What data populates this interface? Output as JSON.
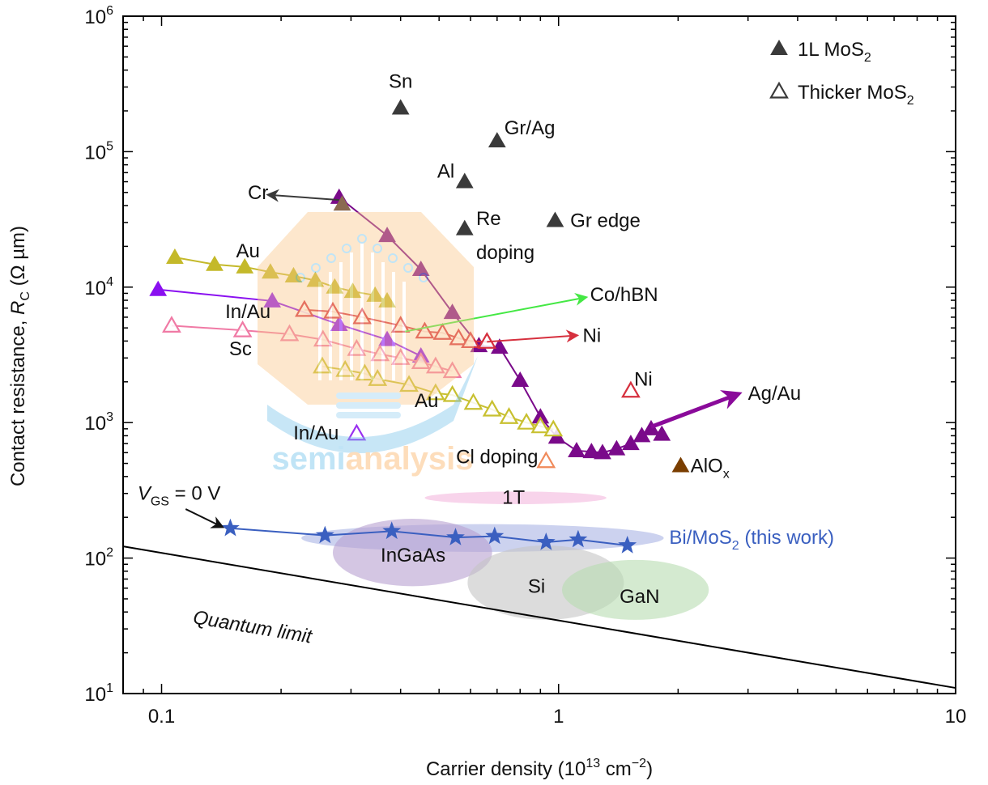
{
  "chart_data": {
    "type": "scatter",
    "xscale": "log",
    "yscale": "log",
    "xlim": [
      0.08,
      10
    ],
    "ylim": [
      10,
      1000000
    ],
    "xlabel": {
      "text": "Carrier density (10",
      "sup": "13",
      "text2": " cm",
      "sup2": "−2",
      "text3": ")"
    },
    "ylabel": {
      "text": "Contact resistance, ",
      "italic": "R",
      "sub": "C",
      "text2": " (Ω µm)"
    },
    "xticks": [
      {
        "value": 0.1,
        "label": "0.1"
      },
      {
        "value": 1,
        "label": "1"
      },
      {
        "value": 10,
        "label": "10"
      }
    ],
    "yticks": [
      {
        "value": 10,
        "base": "10",
        "exp": "1"
      },
      {
        "value": 100,
        "base": "10",
        "exp": "2"
      },
      {
        "value": 1000,
        "base": "10",
        "exp": "3"
      },
      {
        "value": 10000,
        "base": "10",
        "exp": "4"
      },
      {
        "value": 100000,
        "base": "10",
        "exp": "5"
      },
      {
        "value": 1000000,
        "base": "10",
        "exp": "6"
      }
    ],
    "legend": {
      "placement": "top-right",
      "entries": [
        {
          "marker": "filled-triangle",
          "text": "1L MoS",
          "sub": "2",
          "color": "#3a3a3a"
        },
        {
          "marker": "open-triangle",
          "text": "Thicker MoS",
          "sub": "2",
          "color": "#3a3a3a"
        }
      ]
    },
    "series": [
      {
        "name": "Ag/Au",
        "marker": "filled",
        "color": "#7a0a8a",
        "line": true,
        "x": [
          0.28,
          0.37,
          0.45,
          0.54,
          0.63,
          0.71,
          0.8,
          0.9,
          0.99,
          1.11,
          1.21,
          1.29,
          1.4,
          1.52,
          1.62,
          1.71,
          1.82
        ],
        "y": [
          46000,
          24000,
          13500,
          6500,
          3700,
          3600,
          2050,
          1100,
          780,
          620,
          610,
          600,
          640,
          700,
          800,
          900,
          820
        ]
      },
      {
        "name": "Au (1L)",
        "marker": "filled",
        "color": "#c4b92a",
        "line": true,
        "x": [
          0.108,
          0.136,
          0.162,
          0.188,
          0.215,
          0.244,
          0.273,
          0.303,
          0.345,
          0.37
        ],
        "y": [
          16600,
          14700,
          14100,
          12900,
          12100,
          11200,
          10000,
          9300,
          8700,
          7900
        ]
      },
      {
        "name": "In/Au (1L)",
        "marker": "filled",
        "color": "#8a10f0",
        "line": true,
        "x": [
          0.098,
          0.19,
          0.28,
          0.37,
          0.45
        ],
        "y": [
          9600,
          7900,
          5300,
          4100,
          3100
        ]
      },
      {
        "name": "Sc",
        "marker": "open",
        "color": "#f07aa5",
        "line": true,
        "x": [
          0.106,
          0.16,
          0.21,
          0.255,
          0.31,
          0.355,
          0.4,
          0.45,
          0.49,
          0.54
        ],
        "y": [
          5200,
          4800,
          4500,
          4100,
          3500,
          3200,
          3000,
          2800,
          2600,
          2400
        ]
      },
      {
        "name": "Ni (thicker)",
        "marker": "open",
        "color": "#d6303e",
        "line": true,
        "x": [
          0.229,
          0.27,
          0.32,
          0.4,
          0.46,
          0.51,
          0.56,
          0.6,
          0.66
        ],
        "y": [
          6800,
          6600,
          6000,
          5200,
          4700,
          4600,
          4200,
          4000,
          3950
        ]
      },
      {
        "name": "Au (thicker)",
        "marker": "open",
        "color": "#c8c030",
        "line": true,
        "x": [
          0.254,
          0.29,
          0.325,
          0.35,
          0.42,
          0.49,
          0.54,
          0.61,
          0.68,
          0.75,
          0.83,
          0.9,
          0.97
        ],
        "y": [
          2600,
          2450,
          2300,
          2100,
          1900,
          1650,
          1600,
          1400,
          1250,
          1100,
          1000,
          940,
          890
        ]
      },
      {
        "name": "Bi/MoS2",
        "marker": "star",
        "color": "#3a5fc0",
        "line": true,
        "x": [
          0.149,
          0.258,
          0.38,
          0.55,
          0.69,
          0.93,
          1.12,
          1.49
        ],
        "y": [
          166,
          147,
          158,
          142,
          145,
          131,
          137,
          124
        ]
      }
    ],
    "points": [
      {
        "name": "Sn",
        "marker": "filled",
        "color": "#3a3a3a",
        "x": 0.4,
        "y": 210000
      },
      {
        "name": "Gr/Ag",
        "marker": "filled",
        "color": "#3a3a3a",
        "x": 0.7,
        "y": 120000
      },
      {
        "name": "Al",
        "marker": "filled",
        "color": "#3a3a3a",
        "x": 0.58,
        "y": 60000
      },
      {
        "name": "Re doping",
        "marker": "filled",
        "color": "#3a3a3a",
        "x": 0.58,
        "y": 27000
      },
      {
        "name": "Gr edge",
        "marker": "filled",
        "color": "#3a3a3a",
        "x": 0.98,
        "y": 31000
      },
      {
        "name": "Cr",
        "marker": "filled",
        "color": "#8a6a50",
        "x": 0.285,
        "y": 41000
      },
      {
        "name": "AlOx",
        "marker": "filled",
        "color": "#7a3e00",
        "x": 2.03,
        "y": 480
      },
      {
        "name": "Ni",
        "marker": "open",
        "color": "#d6303e",
        "x": 1.52,
        "y": 1720
      },
      {
        "name": "Cl doping",
        "marker": "open",
        "color": "#f08a5a",
        "x": 0.93,
        "y": 520
      },
      {
        "name": "In/Au (thicker)",
        "marker": "open",
        "color": "#9a30f0",
        "x": 0.31,
        "y": 830
      }
    ],
    "arrows": [
      {
        "name": "Cr",
        "color": "#3a3a3a",
        "from": [
          0.28,
          44000
        ],
        "to": [
          0.186,
          48000
        ],
        "width": 2
      },
      {
        "name": "Co/hBN",
        "color": "#44e844",
        "from": [
          0.41,
          4700
        ],
        "to": [
          1.17,
          8400
        ],
        "width": 2
      },
      {
        "name": "Ni",
        "color": "#d6303e",
        "from": [
          0.66,
          3950
        ],
        "to": [
          1.11,
          4400
        ],
        "width": 2
      },
      {
        "name": "Ag/Au",
        "color": "#8a0a9a",
        "from": [
          1.71,
          930
        ],
        "to": [
          2.84,
          1630
        ],
        "width": 5
      },
      {
        "name": "VGS",
        "color": "#111111",
        "from": [
          0.115,
          230
        ],
        "to": [
          0.142,
          170
        ],
        "width": 2
      }
    ],
    "regions": [
      {
        "name": "1T",
        "color": "#f4b8de",
        "x": [
          0.46,
          1.32
        ],
        "y": [
          250,
          310
        ]
      },
      {
        "name": "Bi band",
        "color": "#aab4e4",
        "x": [
          0.225,
          1.84
        ],
        "y": [
          111,
          178
        ]
      },
      {
        "name": "InGaAs",
        "color": "#b8a0d0",
        "x": [
          0.27,
          0.68
        ],
        "y": [
          62,
          195
        ]
      },
      {
        "name": "Si",
        "color": "#c4c4c4",
        "x": [
          0.59,
          1.46
        ],
        "y": [
          35,
          124
        ]
      },
      {
        "name": "GaN",
        "color": "#b8dcb0",
        "x": [
          1.02,
          2.39
        ],
        "y": [
          35,
          97
        ]
      }
    ],
    "quantum_limit": {
      "label": "Quantum limit",
      "x": [
        0.08,
        10
      ],
      "y": [
        122,
        11
      ]
    },
    "annotations": [
      {
        "text": "Sn",
        "x": 0.4,
        "y": 330000,
        "anchor": "middle",
        "color": "#111"
      },
      {
        "text": "Gr/Ag",
        "x": 0.73,
        "y": 150000,
        "anchor": "start",
        "color": "#111"
      },
      {
        "text": "Al",
        "x": 0.52,
        "y": 72000,
        "anchor": "middle",
        "color": "#111"
      },
      {
        "text": "Re",
        "x": 0.62,
        "y": 32000,
        "anchor": "start",
        "color": "#111"
      },
      {
        "text": "doping",
        "x": 0.62,
        "y": 18000,
        "anchor": "start",
        "color": "#111"
      },
      {
        "text": "Gr edge",
        "x": 1.07,
        "y": 31000,
        "anchor": "start",
        "color": "#111"
      },
      {
        "text": "Cr",
        "x": 0.175,
        "y": 50000,
        "anchor": "middle",
        "color": "#111"
      },
      {
        "text": "Au",
        "x": 0.165,
        "y": 18500,
        "anchor": "middle",
        "color": "#111"
      },
      {
        "text": "In/Au",
        "x": 0.165,
        "y": 6600,
        "anchor": "middle",
        "color": "#111"
      },
      {
        "text": "Sc",
        "x": 0.158,
        "y": 3500,
        "anchor": "middle",
        "color": "#111"
      },
      {
        "text": "Co/hBN",
        "x": 1.2,
        "y": 8800,
        "anchor": "start",
        "color": "#111"
      },
      {
        "text": "Ni",
        "x": 1.15,
        "y": 4400,
        "anchor": "start",
        "color": "#111"
      },
      {
        "text": "Ni",
        "x": 1.55,
        "y": 2100,
        "anchor": "start",
        "color": "#111"
      },
      {
        "text": "Ag/Au",
        "x": 3.0,
        "y": 1650,
        "anchor": "start",
        "color": "#111"
      },
      {
        "text": "Au",
        "x": 0.465,
        "y": 1450,
        "anchor": "middle",
        "color": "#111"
      },
      {
        "text": "In/Au",
        "x": 0.245,
        "y": 840,
        "anchor": "middle",
        "color": "#111"
      },
      {
        "text": "Cl doping",
        "x": 0.7,
        "y": 560,
        "anchor": "middle",
        "color": "#111"
      },
      {
        "text": "AlO",
        "sub": "x",
        "x": 2.15,
        "y": 480,
        "anchor": "start",
        "color": "#111"
      },
      {
        "text": "1T",
        "x": 0.77,
        "y": 280,
        "anchor": "middle",
        "color": "#111"
      },
      {
        "text": "V",
        "sub": "GS",
        "text2": " = 0 V",
        "x": 0.087,
        "y": 300,
        "anchor": "start",
        "color": "#111",
        "italic": true
      },
      {
        "text": "Bi/MoS",
        "sub": "2",
        "text2": " (this work)",
        "x": 1.9,
        "y": 142,
        "anchor": "start",
        "color": "#3a5fc0"
      },
      {
        "text": "InGaAs",
        "x": 0.43,
        "y": 105,
        "anchor": "middle",
        "color": "#111"
      },
      {
        "text": "Si",
        "x": 0.88,
        "y": 62,
        "anchor": "middle",
        "color": "#111"
      },
      {
        "text": "GaN",
        "x": 1.6,
        "y": 52,
        "anchor": "middle",
        "color": "#111"
      }
    ],
    "watermark": {
      "text1": "semi",
      "text2": "analysis"
    }
  }
}
